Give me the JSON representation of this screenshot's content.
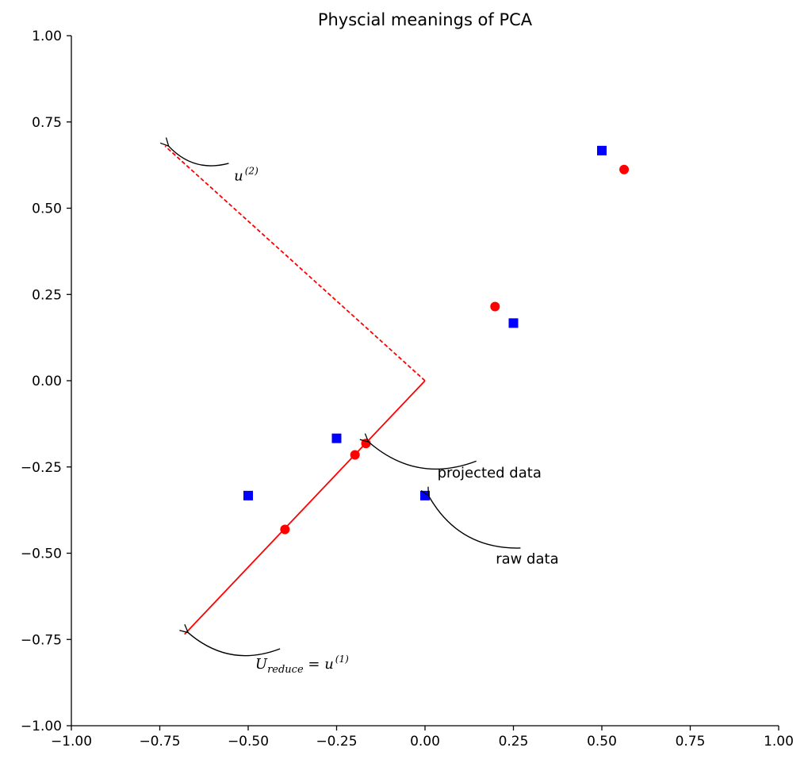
{
  "chart_data": {
    "type": "scatter",
    "title": "Physcial meanings of PCA",
    "xlabel": "",
    "ylabel": "",
    "xlim": [
      -1.0,
      1.0
    ],
    "ylim": [
      -1.0,
      1.0
    ],
    "xticks": [
      "−1.00",
      "−0.75",
      "−0.50",
      "−0.25",
      "0.00",
      "0.25",
      "0.50",
      "0.75",
      "1.00"
    ],
    "yticks": [
      "−1.00",
      "−0.75",
      "−0.50",
      "−0.25",
      "0.00",
      "0.25",
      "0.50",
      "0.75",
      "1.00"
    ],
    "grid": false,
    "series": [
      {
        "kind": "raw",
        "marker": "square",
        "color": "#0000ff",
        "points": [
          [
            -0.5,
            -0.333
          ],
          [
            -0.25,
            -0.167
          ],
          [
            0.0,
            -0.333
          ],
          [
            0.25,
            0.167
          ],
          [
            0.5,
            0.667
          ]
        ]
      },
      {
        "kind": "projected",
        "marker": "circle",
        "color": "#ff0000",
        "points": [
          [
            -0.396,
            -0.431
          ],
          [
            -0.198,
            -0.215
          ],
          [
            -0.167,
            -0.182
          ],
          [
            0.198,
            0.215
          ],
          [
            0.563,
            0.612
          ]
        ]
      }
    ],
    "vectors": [
      {
        "kind": "u1",
        "style": "solid",
        "color": "#ff0000",
        "from": [
          0,
          0
        ],
        "to": [
          -0.68,
          -0.735
        ]
      },
      {
        "kind": "u2",
        "style": "dashed",
        "color": "#ff0000",
        "from": [
          0,
          0
        ],
        "to": [
          -0.735,
          0.68
        ]
      }
    ],
    "annotations": [
      {
        "id": "u2",
        "math": true,
        "base": "u",
        "sup": "(2)",
        "text_xy": [
          -0.54,
          0.58
        ],
        "arrow_xy": [
          -0.725,
          0.68
        ],
        "arrow_start": [
          -0.555,
          0.63
        ]
      },
      {
        "id": "projected",
        "text": "projected data",
        "text_xy": [
          0.035,
          -0.28
        ],
        "arrow_xy": [
          -0.16,
          -0.177
        ],
        "arrow_start": [
          0.145,
          -0.233
        ]
      },
      {
        "id": "raw",
        "text": "raw data",
        "text_xy": [
          0.2,
          -0.53
        ],
        "arrow_xy": [
          0.01,
          -0.333
        ],
        "arrow_start": [
          0.27,
          -0.485
        ]
      },
      {
        "id": "ureduce",
        "math": true,
        "base": "U",
        "sub": "reduce",
        "eq": " = u",
        "sup": "(1)",
        "text_xy": [
          -0.48,
          -0.835
        ],
        "arrow_xy": [
          -0.67,
          -0.73
        ],
        "arrow_start": [
          -0.41,
          -0.777
        ]
      }
    ]
  }
}
